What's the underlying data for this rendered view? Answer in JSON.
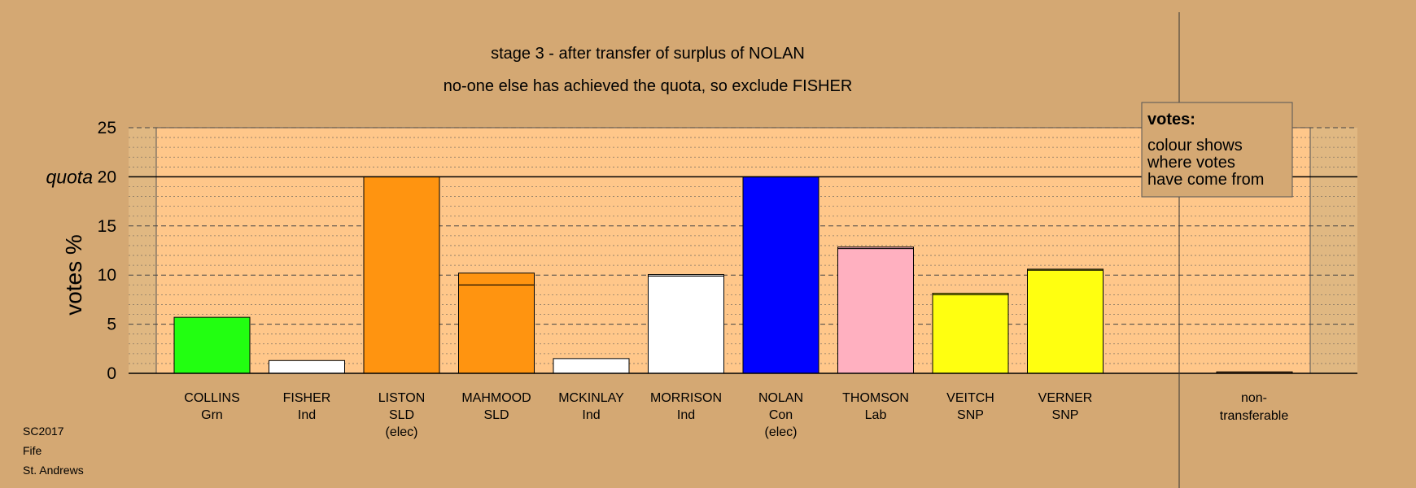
{
  "chart_data": {
    "type": "bar",
    "title": "stage 3 - after transfer of surplus of NOLAN",
    "subtitle": "no-one else has achieved the quota, so exclude FISHER",
    "ylabel": "votes %",
    "quota_label": "quota",
    "quota_value": 20,
    "ylim": [
      0,
      25
    ],
    "yticks": [
      0,
      5,
      10,
      15,
      20,
      25
    ],
    "grid": true,
    "candidates": [
      {
        "name": "COLLINS",
        "party": "Grn",
        "status": "",
        "segments": [
          {
            "value": 5.7,
            "color": "#22ff11"
          }
        ]
      },
      {
        "name": "FISHER",
        "party": "Ind",
        "status": "",
        "segments": [
          {
            "value": 1.3,
            "color": "#ffffff"
          }
        ]
      },
      {
        "name": "LISTON",
        "party": "SLD",
        "status": "(elec)",
        "segments": [
          {
            "value": 20.0,
            "color": "#ff9410"
          }
        ]
      },
      {
        "name": "MAHMOOD",
        "party": "SLD",
        "status": "",
        "segments": [
          {
            "value": 9.0,
            "color": "#ff9410"
          },
          {
            "value": 1.2,
            "color": "#ff9410"
          }
        ]
      },
      {
        "name": "MCKINLAY",
        "party": "Ind",
        "status": "",
        "segments": [
          {
            "value": 1.5,
            "color": "#ffffff"
          }
        ]
      },
      {
        "name": "MORRISON",
        "party": "Ind",
        "status": "",
        "segments": [
          {
            "value": 9.9,
            "color": "#ffffff"
          },
          {
            "value": 0.15,
            "color": "#ffffff"
          }
        ]
      },
      {
        "name": "NOLAN",
        "party": "Con",
        "status": "(elec)",
        "segments": [
          {
            "value": 20.0,
            "color": "#0000ff"
          }
        ]
      },
      {
        "name": "THOMSON",
        "party": "Lab",
        "status": "",
        "segments": [
          {
            "value": 12.7,
            "color": "#ffb0c0"
          },
          {
            "value": 0.15,
            "color": "#ffb0c0"
          }
        ]
      },
      {
        "name": "VEITCH",
        "party": "SNP",
        "status": "",
        "segments": [
          {
            "value": 8.0,
            "color": "#ffff10"
          },
          {
            "value": 0.15,
            "color": "#ffff10"
          }
        ]
      },
      {
        "name": "VERNER",
        "party": "SNP",
        "status": "",
        "segments": [
          {
            "value": 10.5,
            "color": "#ffff10"
          },
          {
            "value": 0.1,
            "color": "#ffff10"
          }
        ]
      }
    ],
    "non_transferable": {
      "label_line1": "non-",
      "label_line2": "transferable",
      "value": 0.15
    },
    "legend": {
      "title": "votes:",
      "lines": [
        "colour shows",
        "where votes",
        "have come from"
      ],
      "placement": "top-right"
    }
  },
  "footer": {
    "line1": "SC2017",
    "line2": "Fife",
    "line3": "St. Andrews"
  },
  "colors": {
    "background": "#d4a873",
    "plot_area": "#ffc78a",
    "legend_bg": "#d4a873",
    "shaded_margin": "#d9b27c"
  }
}
